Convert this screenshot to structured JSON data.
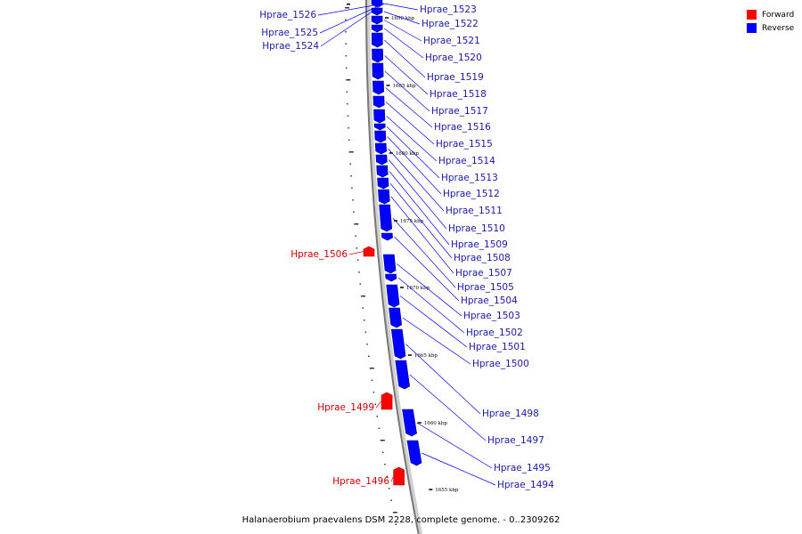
{
  "legend": {
    "forward_label": "Forward",
    "reverse_label": "Reverse",
    "forward_color": "#ff0000",
    "reverse_color": "#0000ff"
  },
  "caption": "Halanaerobium praevalens DSM 2228, complete genome. - 0..2309262",
  "ruler": [
    {
      "label": "1690 kbp"
    },
    {
      "label": "1685 kbp"
    },
    {
      "label": "1680 kbp"
    },
    {
      "label": "1675 kbp"
    },
    {
      "label": "1670 kbp"
    },
    {
      "label": "1665 kbp"
    },
    {
      "label": "1660 kbp"
    },
    {
      "label": "1655 kbp"
    }
  ],
  "genes": [
    {
      "label": "Hprae_1526",
      "strand": "reverse"
    },
    {
      "label": "Hprae_1525",
      "strand": "reverse"
    },
    {
      "label": "Hprae_1524",
      "strand": "reverse"
    },
    {
      "label": "Hprae_1523",
      "strand": "reverse"
    },
    {
      "label": "Hprae_1522",
      "strand": "reverse"
    },
    {
      "label": "Hprae_1521",
      "strand": "reverse"
    },
    {
      "label": "Hprae_1520",
      "strand": "reverse"
    },
    {
      "label": "Hprae_1519",
      "strand": "reverse"
    },
    {
      "label": "Hprae_1518",
      "strand": "reverse"
    },
    {
      "label": "Hprae_1517",
      "strand": "reverse"
    },
    {
      "label": "Hprae_1516",
      "strand": "reverse"
    },
    {
      "label": "Hprae_1515",
      "strand": "reverse"
    },
    {
      "label": "Hprae_1514",
      "strand": "reverse"
    },
    {
      "label": "Hprae_1513",
      "strand": "reverse"
    },
    {
      "label": "Hprae_1512",
      "strand": "reverse"
    },
    {
      "label": "Hprae_1511",
      "strand": "reverse"
    },
    {
      "label": "Hprae_1510",
      "strand": "reverse"
    },
    {
      "label": "Hprae_1509",
      "strand": "reverse"
    },
    {
      "label": "Hprae_1508",
      "strand": "reverse"
    },
    {
      "label": "Hprae_1507",
      "strand": "reverse"
    },
    {
      "label": "Hprae_1506",
      "strand": "forward"
    },
    {
      "label": "Hprae_1505",
      "strand": "reverse"
    },
    {
      "label": "Hprae_1504",
      "strand": "reverse"
    },
    {
      "label": "Hprae_1503",
      "strand": "reverse"
    },
    {
      "label": "Hprae_1502",
      "strand": "reverse"
    },
    {
      "label": "Hprae_1501",
      "strand": "reverse"
    },
    {
      "label": "Hprae_1500",
      "strand": "reverse"
    },
    {
      "label": "Hprae_1499",
      "strand": "forward"
    },
    {
      "label": "Hprae_1498",
      "strand": "reverse"
    },
    {
      "label": "Hprae_1497",
      "strand": "reverse"
    },
    {
      "label": "Hprae_1496",
      "strand": "forward"
    },
    {
      "label": "Hprae_1495",
      "strand": "reverse"
    },
    {
      "label": "Hprae_1494",
      "strand": "reverse"
    }
  ]
}
